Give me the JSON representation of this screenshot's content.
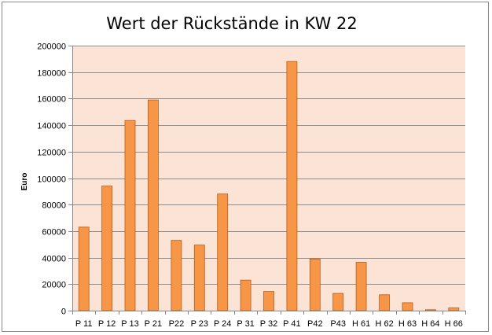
{
  "chart_data": {
    "type": "bar",
    "title": "Wert der Rückstände in KW 22",
    "xlabel": "",
    "ylabel": "Euro",
    "ylim": [
      0,
      200000
    ],
    "yticks": [
      0,
      20000,
      40000,
      60000,
      80000,
      100000,
      120000,
      140000,
      160000,
      180000,
      200000
    ],
    "ytick_labels": [
      "0",
      "20000",
      "40000",
      "60000",
      "80000",
      "100000",
      "120000",
      "140000",
      "160000",
      "180000",
      "200000"
    ],
    "grid": true,
    "legend": "none",
    "categories": [
      "P 11",
      "P 12",
      "P 13",
      "P 21",
      "P22",
      "P 23",
      "P 24",
      "P 31",
      "P 32",
      "P 41",
      "P42",
      "P43",
      "H 61",
      "H 62",
      "H 63",
      "H 64",
      "H 66"
    ],
    "values": [
      63000,
      94000,
      143500,
      159000,
      53000,
      49500,
      88000,
      23000,
      14500,
      188000,
      39000,
      13000,
      36500,
      12000,
      6000,
      700,
      2000
    ],
    "colors": {
      "bar_fill": "#f79646",
      "bar_stroke": "#b85c19",
      "plot_background": "#fbe3d6",
      "gridline": "#8c8c8c",
      "axis": "#868686"
    }
  }
}
